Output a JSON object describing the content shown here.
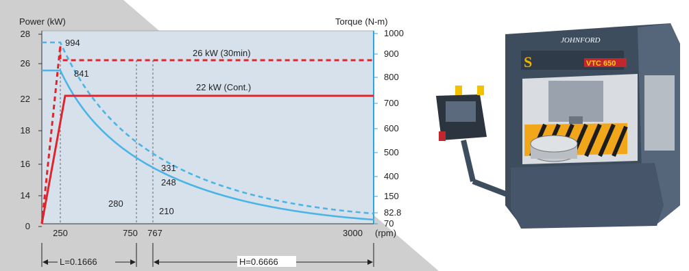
{
  "chart_data": {
    "type": "line",
    "left_axis_label": "Power (kW)",
    "right_axis_label": "Torque (N-m)",
    "x_unit_label": "(rpm)",
    "x_ticks": [
      "250",
      "750",
      "767",
      "3000"
    ],
    "left_ticks": [
      "28",
      "26",
      "22",
      "18",
      "16",
      "14",
      "0"
    ],
    "right_ticks": [
      "1000",
      "900",
      "800",
      "700",
      "600",
      "500",
      "400",
      "150",
      "82.8",
      "70"
    ],
    "ylim_power": [
      0,
      28
    ],
    "series": [
      {
        "name": "26 kW (30min)",
        "color": "#e0242c",
        "style": "dashed",
        "points": [
          [
            0,
            0
          ],
          [
            250,
            26
          ],
          [
            3000,
            26
          ]
        ]
      },
      {
        "name": "22 kW (Cont.)",
        "color": "#e0242c",
        "style": "solid",
        "points": [
          [
            0,
            0
          ],
          [
            250,
            22
          ],
          [
            3000,
            22
          ]
        ]
      }
    ],
    "torque_series": [
      {
        "style": "dashed",
        "color": "#4ab4e6"
      },
      {
        "style": "solid",
        "color": "#4ab4e6"
      }
    ],
    "annotations": [
      "994",
      "841",
      "331",
      "248",
      "280",
      "210"
    ],
    "ranges": [
      {
        "label": "L=0.1666",
        "from": 0,
        "to": 750
      },
      {
        "label": "H=0.6666",
        "from": 767,
        "to": 3000
      }
    ],
    "grid": false
  },
  "photo": {
    "brand_label": "JOHNFORD",
    "model_label": "VTC 650"
  }
}
